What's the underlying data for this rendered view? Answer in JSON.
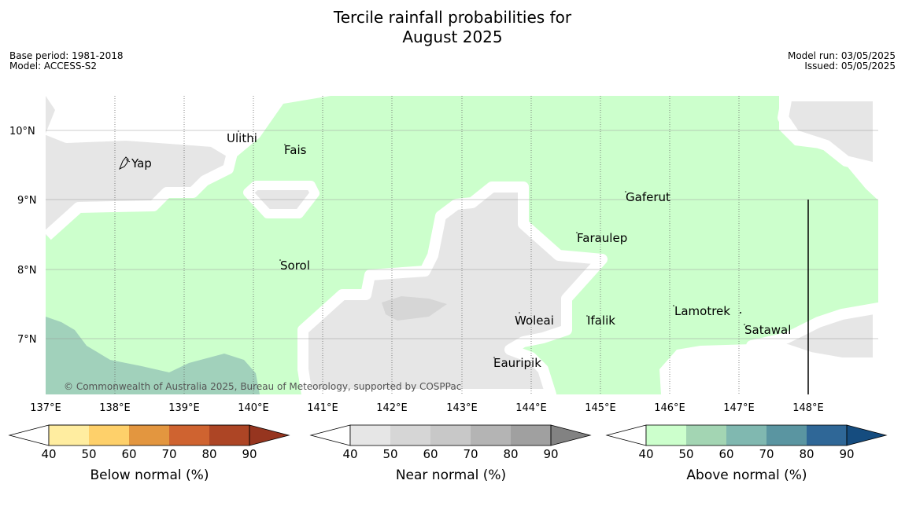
{
  "title_line1": "Tercile rainfall probabilities for",
  "title_line2": "August 2025",
  "base_period": "Base period: 1981-2018",
  "model": "Model: ACCESS-S2",
  "model_run": "Model run: 03/05/2025",
  "issued": "Issued: 05/05/2025",
  "copyright": "© Commonwealth of Australia 2025, Bureau of Meteorology, supported by COSPPac",
  "lat_labels": [
    "10°N",
    "9°N",
    "8°N",
    "7°N"
  ],
  "lon_labels": [
    "137°E",
    "138°E",
    "139°E",
    "140°E",
    "141°E",
    "142°E",
    "143°E",
    "144°E",
    "145°E",
    "146°E",
    "147°E",
    "148°E"
  ],
  "places": {
    "yap": "Yap",
    "ulithi": "Ulithi",
    "fais": "Fais",
    "gaferut": "Gaferut",
    "faraulep": "Faraulep",
    "sorol": "Sorol",
    "woleai": "Woleai",
    "ifalik": "Ifalik",
    "lamotrek": "Lamotrek",
    "satawal": "Satawal",
    "eauripik": "Eauripik"
  },
  "colorbars": {
    "ticks": [
      "40",
      "50",
      "60",
      "70",
      "80",
      "90"
    ],
    "below": {
      "title": "Below normal (%)",
      "colors": [
        "#ffeda0",
        "#fed06a",
        "#e3963f",
        "#cf6330",
        "#ad4525",
        "#96351f"
      ]
    },
    "near": {
      "title": "Near normal (%)",
      "colors": [
        "#e6e6e6",
        "#d6d6d6",
        "#c8c8c8",
        "#b4b4b4",
        "#a0a0a0",
        "#828282"
      ]
    },
    "above": {
      "title": "Above normal (%)",
      "colors": [
        "#ccffcc",
        "#a3d5b3",
        "#80b8b0",
        "#5a95a1",
        "#2f6797",
        "#154c7f"
      ]
    }
  },
  "colors": {
    "green_40": "#ccffcc",
    "green_50": "#a1d1bb",
    "grey_40": "#e6e6e6",
    "grey_50": "#d6d6d6"
  }
}
